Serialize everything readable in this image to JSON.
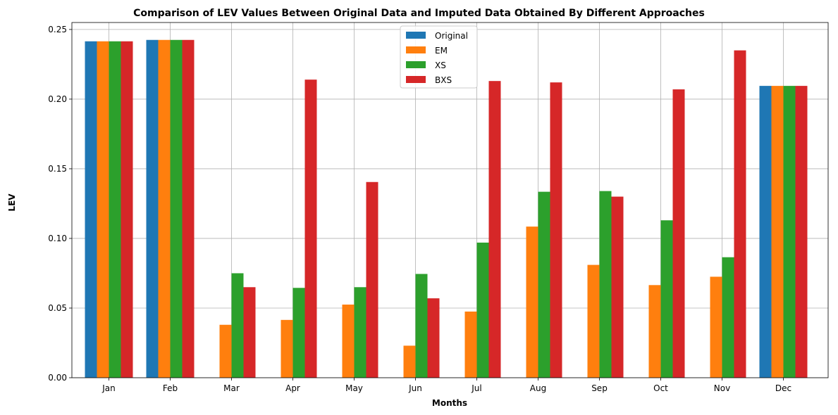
{
  "chart_data": {
    "type": "bar",
    "title": "Comparison of LEV Values Between Original Data and Imputed Data Obtained By Different Approaches",
    "xlabel": "Months",
    "ylabel": "LEV",
    "ylim": [
      0,
      0.255
    ],
    "grid": true,
    "legend_position": "top-center",
    "categories": [
      "Jan",
      "Feb",
      "Mar",
      "Apr",
      "May",
      "Jun",
      "Jul",
      "Aug",
      "Sep",
      "Oct",
      "Nov",
      "Dec"
    ],
    "yticks": [
      "0.00",
      "0.05",
      "0.10",
      "0.15",
      "0.20",
      "0.25"
    ],
    "series": [
      {
        "name": "Original",
        "color": "#1f77b4",
        "values": [
          0.2415,
          0.2425,
          null,
          null,
          null,
          null,
          null,
          null,
          null,
          null,
          null,
          0.2095
        ]
      },
      {
        "name": "EM",
        "color": "#ff7f0e",
        "values": [
          0.2415,
          0.2425,
          0.038,
          0.0415,
          0.0525,
          0.023,
          0.0475,
          0.1085,
          0.081,
          0.0665,
          0.0725,
          0.2095
        ]
      },
      {
        "name": "XS",
        "color": "#2ca02c",
        "values": [
          0.2415,
          0.2425,
          0.075,
          0.0645,
          0.065,
          0.0745,
          0.097,
          0.1335,
          0.134,
          0.113,
          0.0865,
          0.2095
        ]
      },
      {
        "name": "BXS",
        "color": "#d62728",
        "values": [
          0.2415,
          0.2425,
          0.065,
          0.214,
          0.1405,
          0.057,
          0.213,
          0.212,
          0.13,
          0.207,
          0.235,
          0.2095
        ]
      }
    ]
  }
}
